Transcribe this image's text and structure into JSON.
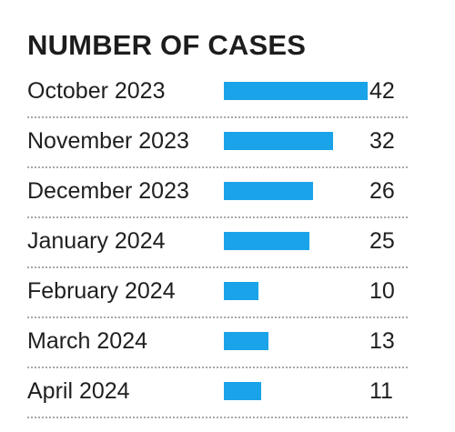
{
  "chart_data": {
    "type": "bar",
    "orientation": "horizontal",
    "title": "NUMBER OF CASES",
    "categories": [
      "October 2023",
      "November 2023",
      "December 2023",
      "January 2024",
      "February 2024",
      "March 2024",
      "April 2024"
    ],
    "values": [
      42,
      32,
      26,
      25,
      10,
      13,
      11
    ],
    "xlim": [
      0,
      42
    ],
    "bar_color": "#1aa3e8",
    "grid": false,
    "data_labels": true
  }
}
